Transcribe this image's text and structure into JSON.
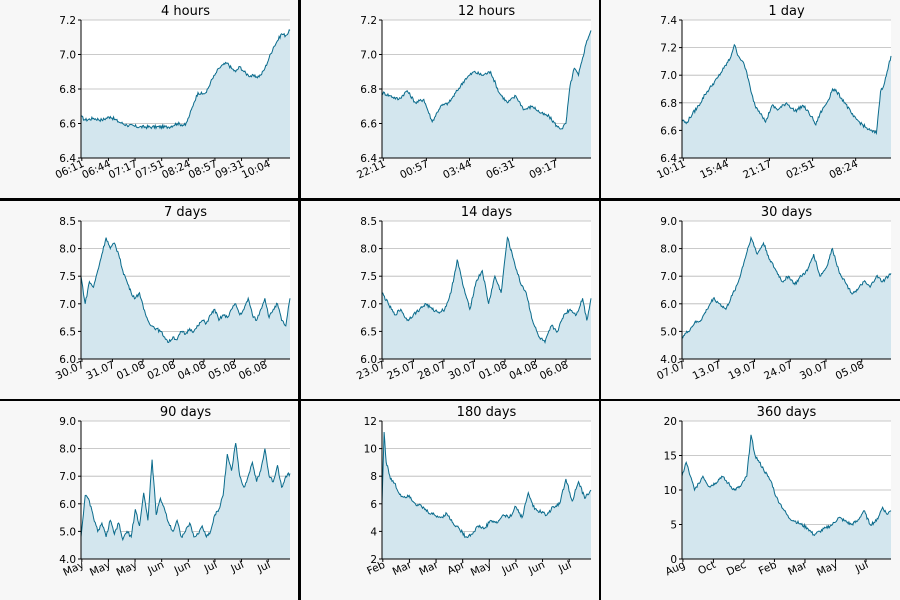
{
  "chart_data": [
    {
      "type": "area",
      "title": "4 hours",
      "ylim": [
        6.4,
        7.2
      ],
      "yticks": [
        "6.4",
        "6.6",
        "6.8",
        "7.0",
        "7.2"
      ],
      "xticks": [
        "06:11",
        "06:44",
        "07:17",
        "07:51",
        "08:24",
        "08:57",
        "09:31",
        "10:04"
      ],
      "series": [
        {
          "x": [
            0,
            0.02,
            0.06,
            0.1,
            0.14,
            0.18,
            0.22,
            0.28,
            0.34,
            0.42,
            0.46,
            0.5,
            0.52,
            0.54,
            0.56,
            0.58,
            0.6,
            0.62,
            0.64,
            0.66,
            0.68,
            0.7,
            0.72,
            0.74,
            0.76,
            0.78,
            0.8,
            0.84,
            0.86,
            0.88,
            0.9,
            0.92,
            0.94,
            0.96,
            0.98,
            1.0
          ],
          "y": [
            6.64,
            6.62,
            6.63,
            6.62,
            6.64,
            6.61,
            6.59,
            6.58,
            6.58,
            6.58,
            6.6,
            6.59,
            6.65,
            6.72,
            6.78,
            6.77,
            6.78,
            6.84,
            6.88,
            6.92,
            6.94,
            6.95,
            6.92,
            6.9,
            6.93,
            6.9,
            6.88,
            6.87,
            6.88,
            6.92,
            6.98,
            7.04,
            7.08,
            7.12,
            7.11,
            7.14
          ]
        }
      ]
    },
    {
      "type": "area",
      "title": "12 hours",
      "ylim": [
        6.4,
        7.2
      ],
      "yticks": [
        "6.4",
        "6.6",
        "6.8",
        "7.0",
        "7.2"
      ],
      "xticks": [
        "22:11",
        "00:57",
        "03:44",
        "06:31",
        "09:17"
      ],
      "series": [
        {
          "x": [
            0,
            0.04,
            0.08,
            0.12,
            0.16,
            0.2,
            0.24,
            0.28,
            0.32,
            0.36,
            0.4,
            0.44,
            0.48,
            0.52,
            0.56,
            0.6,
            0.64,
            0.68,
            0.72,
            0.76,
            0.8,
            0.84,
            0.86,
            0.88,
            0.9,
            0.92,
            0.94,
            0.96,
            0.98,
            1.0
          ],
          "y": [
            6.78,
            6.76,
            6.74,
            6.79,
            6.72,
            6.74,
            6.61,
            6.7,
            6.72,
            6.79,
            6.86,
            6.9,
            6.88,
            6.9,
            6.78,
            6.72,
            6.76,
            6.68,
            6.7,
            6.66,
            6.64,
            6.58,
            6.57,
            6.6,
            6.82,
            6.92,
            6.88,
            6.98,
            7.08,
            7.14
          ]
        }
      ]
    },
    {
      "type": "area",
      "title": "1 day",
      "ylim": [
        6.4,
        7.4
      ],
      "yticks": [
        "6.4",
        "6.6",
        "6.8",
        "7.0",
        "7.2",
        "7.4"
      ],
      "xticks": [
        "10:11",
        "15:44",
        "21:17",
        "02:51",
        "08:24"
      ],
      "series": [
        {
          "x": [
            0,
            0.02,
            0.05,
            0.08,
            0.11,
            0.14,
            0.17,
            0.2,
            0.23,
            0.25,
            0.27,
            0.29,
            0.31,
            0.33,
            0.35,
            0.38,
            0.4,
            0.43,
            0.46,
            0.5,
            0.54,
            0.58,
            0.62,
            0.64,
            0.66,
            0.7,
            0.72,
            0.74,
            0.78,
            0.82,
            0.85,
            0.88,
            0.9,
            0.93,
            0.95,
            0.97,
            1.0
          ],
          "y": [
            6.68,
            6.65,
            6.72,
            6.78,
            6.86,
            6.92,
            6.98,
            7.05,
            7.12,
            7.22,
            7.14,
            7.1,
            7.02,
            6.88,
            6.78,
            6.72,
            6.66,
            6.78,
            6.75,
            6.8,
            6.74,
            6.78,
            6.7,
            6.64,
            6.72,
            6.82,
            6.9,
            6.88,
            6.8,
            6.7,
            6.66,
            6.62,
            6.6,
            6.58,
            6.88,
            6.95,
            7.14
          ]
        }
      ]
    },
    {
      "type": "area",
      "title": "7 days",
      "ylim": [
        6.0,
        8.5
      ],
      "yticks": [
        "6.0",
        "6.5",
        "7.0",
        "7.5",
        "8.0",
        "8.5"
      ],
      "xticks": [
        "30.07",
        "31.07",
        "01.08",
        "02.08",
        "04.08",
        "05.08",
        "06.08"
      ],
      "series": [
        {
          "x": [
            0,
            0.02,
            0.04,
            0.06,
            0.08,
            0.1,
            0.12,
            0.14,
            0.16,
            0.18,
            0.2,
            0.22,
            0.24,
            0.26,
            0.28,
            0.3,
            0.32,
            0.34,
            0.36,
            0.38,
            0.4,
            0.42,
            0.44,
            0.46,
            0.48,
            0.5,
            0.52,
            0.54,
            0.56,
            0.58,
            0.6,
            0.62,
            0.64,
            0.66,
            0.68,
            0.7,
            0.72,
            0.74,
            0.76,
            0.78,
            0.8,
            0.82,
            0.84,
            0.86,
            0.88,
            0.9,
            0.92,
            0.94,
            0.96,
            0.98,
            1.0
          ],
          "y": [
            7.5,
            7.0,
            7.4,
            7.3,
            7.6,
            7.9,
            8.2,
            8.0,
            8.1,
            7.9,
            7.6,
            7.4,
            7.2,
            7.1,
            7.2,
            6.9,
            6.7,
            6.6,
            6.55,
            6.5,
            6.4,
            6.3,
            6.4,
            6.35,
            6.5,
            6.45,
            6.55,
            6.5,
            6.6,
            6.7,
            6.65,
            6.8,
            6.9,
            6.7,
            6.8,
            6.75,
            6.9,
            7.0,
            6.8,
            6.9,
            7.1,
            6.8,
            6.7,
            6.9,
            7.1,
            6.75,
            6.9,
            7.0,
            6.7,
            6.6,
            7.1
          ]
        }
      ]
    },
    {
      "type": "area",
      "title": "14 days",
      "ylim": [
        6.0,
        8.5
      ],
      "yticks": [
        "6.0",
        "6.5",
        "7.0",
        "7.5",
        "8.0",
        "8.5"
      ],
      "xticks": [
        "23.07",
        "25.07",
        "28.07",
        "30.07",
        "01.08",
        "04.08",
        "06.08"
      ],
      "series": [
        {
          "x": [
            0,
            0.03,
            0.06,
            0.09,
            0.12,
            0.15,
            0.18,
            0.21,
            0.24,
            0.27,
            0.3,
            0.33,
            0.36,
            0.39,
            0.42,
            0.45,
            0.48,
            0.51,
            0.54,
            0.57,
            0.6,
            0.63,
            0.66,
            0.69,
            0.72,
            0.75,
            0.78,
            0.81,
            0.84,
            0.87,
            0.9,
            0.93,
            0.96,
            0.98,
            1.0
          ],
          "y": [
            7.2,
            7.0,
            6.8,
            6.9,
            6.7,
            6.8,
            6.9,
            7.0,
            6.9,
            6.85,
            6.9,
            7.2,
            7.8,
            7.3,
            6.9,
            7.4,
            7.6,
            7.0,
            7.5,
            7.2,
            8.2,
            7.8,
            7.4,
            7.2,
            6.7,
            6.4,
            6.3,
            6.6,
            6.5,
            6.8,
            6.9,
            6.8,
            7.1,
            6.7,
            7.1
          ]
        }
      ]
    },
    {
      "type": "area",
      "title": "30 days",
      "ylim": [
        4.0,
        9.0
      ],
      "yticks": [
        "4.0",
        "5.0",
        "6.0",
        "7.0",
        "8.0",
        "9.0"
      ],
      "xticks": [
        "07.07",
        "13.07",
        "19.07",
        "24.07",
        "30.07",
        "05.08"
      ],
      "series": [
        {
          "x": [
            0,
            0.03,
            0.06,
            0.09,
            0.12,
            0.15,
            0.18,
            0.21,
            0.24,
            0.27,
            0.3,
            0.33,
            0.36,
            0.39,
            0.42,
            0.45,
            0.48,
            0.51,
            0.54,
            0.57,
            0.6,
            0.63,
            0.66,
            0.69,
            0.72,
            0.75,
            0.78,
            0.81,
            0.84,
            0.87,
            0.9,
            0.93,
            0.96,
            1.0
          ],
          "y": [
            4.8,
            5.0,
            5.3,
            5.4,
            5.8,
            6.2,
            6.0,
            5.8,
            6.3,
            6.8,
            7.6,
            8.4,
            7.8,
            8.2,
            7.6,
            7.2,
            6.8,
            7.0,
            6.7,
            7.0,
            7.2,
            7.8,
            7.0,
            7.3,
            8.0,
            7.2,
            6.8,
            6.4,
            6.5,
            6.8,
            6.6,
            7.0,
            6.8,
            7.1
          ]
        }
      ]
    },
    {
      "type": "area",
      "title": "90 days",
      "ylim": [
        4.0,
        9.0
      ],
      "yticks": [
        "4.0",
        "5.0",
        "6.0",
        "7.0",
        "8.0",
        "9.0"
      ],
      "xticks": [
        "May",
        "May",
        "May",
        "Jun",
        "Jun",
        "Jul",
        "Jul",
        "Jul"
      ],
      "series": [
        {
          "x": [
            0,
            0.02,
            0.04,
            0.06,
            0.08,
            0.1,
            0.12,
            0.14,
            0.16,
            0.18,
            0.2,
            0.22,
            0.24,
            0.26,
            0.28,
            0.3,
            0.32,
            0.34,
            0.36,
            0.38,
            0.4,
            0.42,
            0.44,
            0.46,
            0.48,
            0.5,
            0.52,
            0.54,
            0.56,
            0.58,
            0.6,
            0.62,
            0.64,
            0.66,
            0.68,
            0.7,
            0.72,
            0.74,
            0.76,
            0.78,
            0.8,
            0.82,
            0.84,
            0.86,
            0.88,
            0.9,
            0.92,
            0.94,
            0.96,
            0.98,
            1.0
          ],
          "y": [
            4.8,
            6.3,
            6.1,
            5.5,
            5.0,
            5.3,
            4.8,
            5.4,
            4.9,
            5.3,
            4.7,
            5.0,
            4.8,
            5.8,
            5.2,
            6.4,
            5.4,
            7.6,
            5.6,
            6.2,
            5.8,
            5.3,
            5.0,
            5.4,
            4.8,
            5.0,
            5.3,
            4.8,
            4.9,
            5.2,
            4.8,
            5.0,
            5.6,
            5.8,
            6.3,
            7.8,
            7.2,
            8.2,
            7.0,
            6.6,
            7.0,
            7.5,
            6.8,
            7.2,
            8.0,
            7.0,
            6.8,
            7.4,
            6.6,
            7.0,
            7.1
          ]
        }
      ]
    },
    {
      "type": "area",
      "title": "180 days",
      "ylim": [
        2,
        12
      ],
      "yticks": [
        "2",
        "4",
        "6",
        "8",
        "10",
        "12"
      ],
      "xticks": [
        "Feb",
        "Mar",
        "Mar",
        "Apr",
        "May",
        "Jun",
        "Jun",
        "Jul"
      ],
      "series": [
        {
          "x": [
            0,
            0.01,
            0.02,
            0.03,
            0.04,
            0.06,
            0.08,
            0.1,
            0.13,
            0.16,
            0.19,
            0.22,
            0.25,
            0.28,
            0.31,
            0.34,
            0.37,
            0.4,
            0.43,
            0.46,
            0.49,
            0.52,
            0.55,
            0.58,
            0.61,
            0.64,
            0.67,
            0.7,
            0.73,
            0.76,
            0.79,
            0.82,
            0.85,
            0.88,
            0.91,
            0.94,
            0.97,
            1.0
          ],
          "y": [
            6.0,
            11.2,
            9.0,
            8.5,
            7.8,
            7.5,
            6.8,
            6.5,
            6.6,
            6.0,
            5.8,
            5.4,
            5.2,
            5.0,
            5.3,
            4.6,
            4.2,
            3.6,
            3.8,
            4.4,
            4.2,
            4.8,
            4.6,
            5.2,
            5.0,
            5.8,
            5.0,
            6.8,
            5.6,
            5.4,
            5.2,
            5.8,
            6.0,
            7.8,
            6.2,
            7.6,
            6.4,
            7.0
          ]
        }
      ]
    },
    {
      "type": "area",
      "title": "360 days",
      "ylim": [
        0,
        20
      ],
      "yticks": [
        "0",
        "5",
        "10",
        "15",
        "20"
      ],
      "xticks": [
        "Aug",
        "Oct",
        "Dec",
        "Feb",
        "Mar",
        "May",
        "Jul"
      ],
      "series": [
        {
          "x": [
            0,
            0.02,
            0.04,
            0.06,
            0.08,
            0.1,
            0.13,
            0.16,
            0.19,
            0.22,
            0.25,
            0.28,
            0.31,
            0.33,
            0.35,
            0.37,
            0.39,
            0.41,
            0.43,
            0.45,
            0.47,
            0.49,
            0.51,
            0.54,
            0.57,
            0.6,
            0.63,
            0.66,
            0.69,
            0.72,
            0.75,
            0.78,
            0.81,
            0.84,
            0.87,
            0.9,
            0.93,
            0.96,
            0.98,
            1.0
          ],
          "y": [
            12,
            14,
            12,
            10,
            11,
            12,
            10.5,
            11,
            12,
            11,
            10,
            10.5,
            12,
            18,
            15,
            14,
            13,
            12,
            11,
            9,
            8,
            7,
            6,
            5.5,
            5,
            4.5,
            3.5,
            4,
            4.5,
            5,
            6,
            5.5,
            5,
            5.5,
            7,
            5,
            5.5,
            7.5,
            6.5,
            7
          ]
        }
      ]
    }
  ]
}
